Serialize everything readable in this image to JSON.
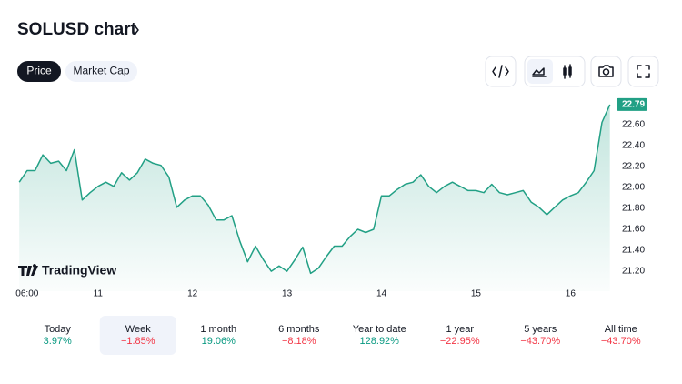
{
  "header": {
    "title": "SOLUSD chart"
  },
  "tabs": {
    "items": [
      "Price",
      "Market Cap"
    ],
    "selected": 0
  },
  "chart_data": {
    "type": "line",
    "color": "#22a085",
    "x": [
      4,
      6,
      8,
      10,
      12,
      14,
      16,
      18,
      20,
      22,
      24,
      26,
      28,
      30,
      32,
      34,
      36,
      38,
      40,
      42,
      44,
      46,
      48,
      50,
      52,
      54,
      56,
      58,
      60,
      62,
      64,
      66,
      68,
      70,
      72,
      74,
      76,
      78,
      80,
      82,
      84,
      86,
      88,
      90,
      92,
      94,
      96,
      98,
      100,
      102,
      104,
      106,
      108,
      110,
      112,
      114,
      116,
      118,
      120,
      122,
      124,
      126,
      128,
      130,
      132,
      134,
      136,
      138,
      140,
      142,
      144,
      146,
      148,
      150,
      152,
      154
    ],
    "values": [
      22.05,
      22.16,
      22.16,
      22.31,
      22.23,
      22.25,
      22.16,
      22.36,
      21.88,
      21.95,
      22.01,
      22.05,
      22.01,
      22.14,
      22.07,
      22.14,
      22.27,
      22.23,
      22.21,
      22.1,
      21.81,
      21.88,
      21.92,
      21.92,
      21.83,
      21.69,
      21.69,
      21.73,
      21.49,
      21.29,
      21.44,
      21.31,
      21.2,
      21.25,
      21.2,
      21.31,
      21.43,
      21.18,
      21.23,
      21.34,
      21.44,
      21.44,
      21.53,
      21.6,
      21.57,
      21.6,
      21.92,
      21.92,
      21.98,
      22.03,
      22.05,
      22.12,
      22.01,
      21.95,
      22.01,
      22.05,
      22.01,
      21.97,
      21.97,
      21.95,
      22.03,
      21.95,
      21.93,
      21.95,
      21.97,
      21.86,
      21.81,
      21.74,
      21.81,
      21.88,
      21.92,
      21.95,
      22.05,
      22.16,
      22.62,
      22.79
    ],
    "xlim": [
      3.5,
      155
    ],
    "xticks": [
      {
        "value": 6,
        "label": "06:00"
      },
      {
        "value": 24,
        "label": "11"
      },
      {
        "value": 48,
        "label": "12"
      },
      {
        "value": 72,
        "label": "13"
      },
      {
        "value": 96,
        "label": "14"
      },
      {
        "value": 120,
        "label": "15"
      },
      {
        "value": 144,
        "label": "16"
      }
    ],
    "ylim": [
      21.01,
      22.85
    ],
    "yticks": [
      {
        "value": 21.2,
        "label": "21.20"
      },
      {
        "value": 21.4,
        "label": "21.40"
      },
      {
        "value": 21.6,
        "label": "21.60"
      },
      {
        "value": 21.8,
        "label": "21.80"
      },
      {
        "value": 22,
        "label": "22.00"
      },
      {
        "value": 22.2,
        "label": "22.20"
      },
      {
        "value": 22.4,
        "label": "22.40"
      },
      {
        "value": 22.6,
        "label": "22.60"
      }
    ],
    "last_value": {
      "value": 22.79,
      "label": "22.79"
    },
    "watermark": "TradingView"
  },
  "periods": {
    "selected": 1,
    "items": [
      {
        "label": "Today",
        "change": "3.97%"
      },
      {
        "label": "Week",
        "change": "−1.85%"
      },
      {
        "label": "1 month",
        "change": "19.06%"
      },
      {
        "label": "6 months",
        "change": "−8.18%"
      },
      {
        "label": "Year to date",
        "change": "128.92%"
      },
      {
        "label": "1 year",
        "change": "−22.95%"
      },
      {
        "label": "5 years",
        "change": "−43.70%"
      },
      {
        "label": "All time",
        "change": "−43.70%"
      }
    ]
  }
}
